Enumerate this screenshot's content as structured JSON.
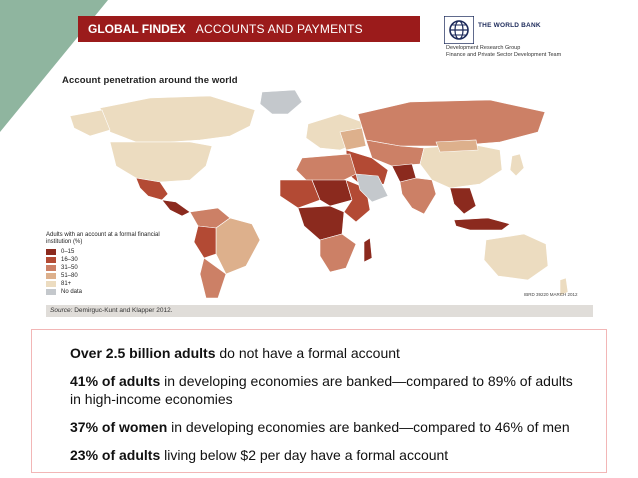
{
  "header": {
    "bold": "GLOBAL FINDEX",
    "light": "ACCOUNTS AND PAYMENTS"
  },
  "brand": {
    "name": "THE WORLD BANK",
    "line1": "Development Research Group",
    "line2": "Finance and Private Sector Development Team",
    "color": "#1c2a5a"
  },
  "map": {
    "title": "Account penetration around the world",
    "legend_title": "Adults with an account at a formal financial institution (%)",
    "legend": [
      {
        "label": "0–15",
        "color": "#8b2a1e"
      },
      {
        "label": "16–30",
        "color": "#b34a34"
      },
      {
        "label": "31–50",
        "color": "#cc8066"
      },
      {
        "label": "51–80",
        "color": "#ddb08c"
      },
      {
        "label": "81+",
        "color": "#ecdcc0"
      },
      {
        "label": "No data",
        "color": "#c4c8cc"
      }
    ],
    "stamp": "IBRD 39220    MARCH 2012",
    "source_label": "Source:",
    "source_text": "Demirguc-Kunt and Klapper 2012."
  },
  "facts": [
    {
      "bold": "Over 2.5 billion adults",
      "rest": " do not have a formal account"
    },
    {
      "bold": "41% of adults",
      "rest": " in developing economies are banked—compared to 89% of adults in high-income economies"
    },
    {
      "bold": "37% of women",
      "rest": " in developing economies are banked—compared to 46% of men"
    },
    {
      "bold": "23% of adults",
      "rest": " living below $2 per day have a formal account"
    }
  ],
  "colors": {
    "accent": "#9b1b1b",
    "corner": "#8fb59f",
    "facts_border": "#f2b6b6"
  }
}
